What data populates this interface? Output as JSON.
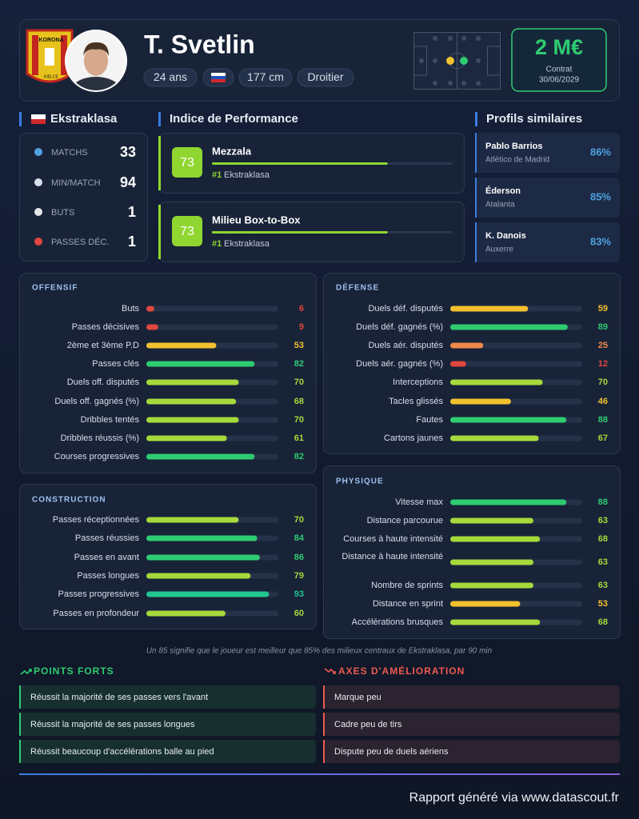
{
  "header": {
    "name": "T. Svetlin",
    "club_logo": [
      "KORONA",
      "KIELCE"
    ],
    "tags": [
      "24 ans",
      "177 cm",
      "Droitier"
    ],
    "market_value": "2 M€",
    "contract_label": "Contrat",
    "contract_date": "30/06/2029"
  },
  "league": {
    "title": "Ekstraklasa",
    "stats": [
      {
        "label": "MATCHS",
        "value": 33
      },
      {
        "label": "MIN/MATCH",
        "value": 94
      },
      {
        "label": "BUTS",
        "value": 1
      },
      {
        "label": "PASSES DÉC.",
        "value": 1
      }
    ]
  },
  "performance": {
    "title": "Indice de Performance",
    "xlim": [
      0,
      100
    ],
    "items": [
      {
        "score": 73,
        "role": "Mezzala",
        "rank": "#1",
        "league": "Ekstraklasa"
      },
      {
        "score": 73,
        "role": "Milieu Box-to-Box",
        "rank": "#1",
        "league": "Ekstraklasa"
      }
    ]
  },
  "similar": {
    "title": "Profils similaires",
    "items": [
      {
        "name": "Pablo Barrios",
        "club": "Atlético de Madrid",
        "match": "86%"
      },
      {
        "name": "Éderson",
        "club": "Atalanta",
        "match": "85%"
      },
      {
        "name": "K. Danois",
        "club": "Auxerre",
        "match": "83%"
      }
    ]
  },
  "stats": {
    "xlim": [
      0,
      100
    ],
    "sections": [
      {
        "title": "OFFENSIF",
        "rows": [
          {
            "label": "Buts",
            "value": 6
          },
          {
            "label": "Passes décisives",
            "value": 9
          },
          {
            "label": "2ème et 3ème P.D",
            "value": 53
          },
          {
            "label": "Passes clés",
            "value": 82
          },
          {
            "label": "Duels off. disputés",
            "value": 70
          },
          {
            "label": "Duels off. gagnés (%)",
            "value": 68
          },
          {
            "label": "Dribbles tentés",
            "value": 70
          },
          {
            "label": "Dribbles réussis (%)",
            "value": 61
          },
          {
            "label": "Courses progressives",
            "value": 82
          }
        ]
      },
      {
        "title": "DÉFENSE",
        "rows": [
          {
            "label": "Duels déf. disputés",
            "value": 59
          },
          {
            "label": "Duels déf. gagnés (%)",
            "value": 89
          },
          {
            "label": "Duels aér. disputés",
            "value": 25
          },
          {
            "label": "Duels aér. gagnés (%)",
            "value": 12
          },
          {
            "label": "Interceptions",
            "value": 70
          },
          {
            "label": "Tacles glissés",
            "value": 46
          },
          {
            "label": "Fautes",
            "value": 88
          },
          {
            "label": "Cartons jaunes",
            "value": 67
          }
        ]
      },
      {
        "title": "CONSTRUCTION",
        "rows": [
          {
            "label": "Passes réceptionnées",
            "value": 70
          },
          {
            "label": "Passes réussies",
            "value": 84
          },
          {
            "label": "Passes en avant",
            "value": 86
          },
          {
            "label": "Passes longues",
            "value": 79
          },
          {
            "label": "Passes progressives",
            "value": 93
          },
          {
            "label": "Passes en profondeur",
            "value": 60
          }
        ]
      },
      {
        "title": "PHYSIQUE",
        "rows": [
          {
            "label": "Vitesse max",
            "value": 88
          },
          {
            "label": "Distance parcourue",
            "value": 63
          },
          {
            "label": "Courses à haute intensité",
            "value": 68
          },
          {
            "label": "Distance à haute intensité",
            "value": 63
          },
          {
            "label": "Nombre de sprints",
            "value": 63
          },
          {
            "label": "Distance en sprint",
            "value": 53
          },
          {
            "label": "Accélérations brusques",
            "value": 68
          }
        ]
      }
    ]
  },
  "footnote": "Un 85 signifie que le joueur est meilleur que 85% des milieux centraux de Ekstraklasa, par 90 min",
  "strengths": {
    "title": "POINTS FORTS",
    "items": [
      "Réussit la majorité de ses passes vers l'avant",
      "Réussit la majorité de ses passes longues",
      "Réussit beaucoup d'accélérations balle au pied"
    ]
  },
  "improvements": {
    "title": "AXES D'AMÉLIORATION",
    "items": [
      "Marque peu",
      "Cadre peu de tirs",
      "Dispute peu de duels aériens"
    ]
  },
  "footer": "Rapport généré via www.datascout.fr"
}
